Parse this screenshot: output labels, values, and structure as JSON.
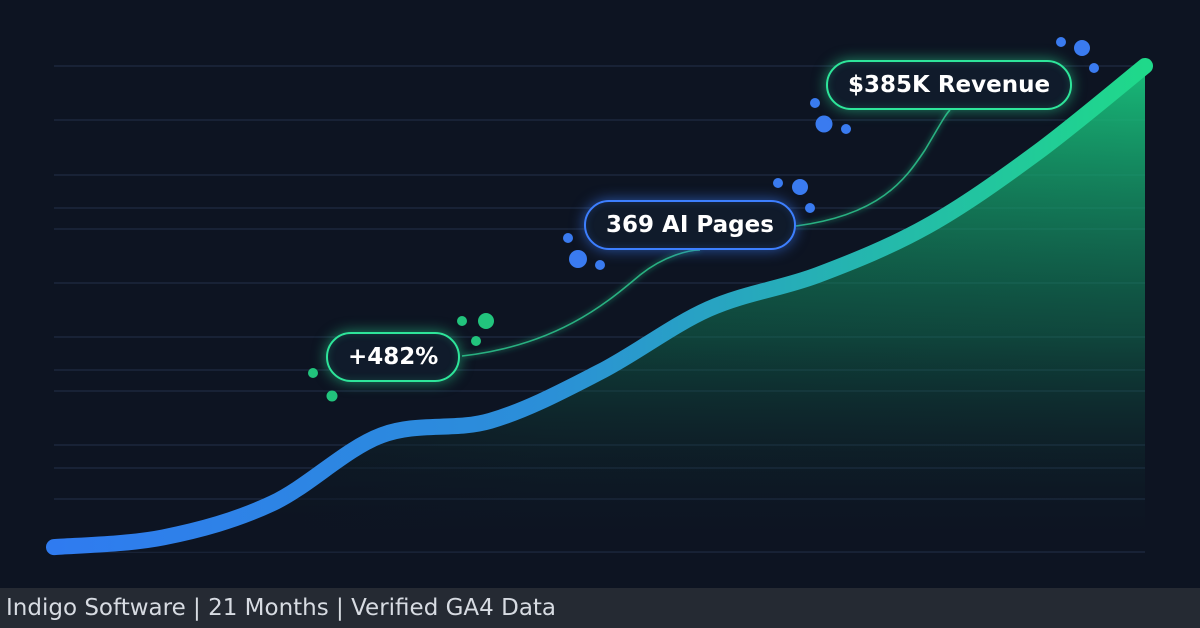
{
  "chart_data": {
    "type": "area",
    "title": "",
    "xlabel": "",
    "ylabel": "",
    "grid": true,
    "x": [
      0,
      0.1,
      0.2,
      0.3,
      0.4,
      0.5,
      0.6,
      0.7,
      0.8,
      0.9,
      1.0
    ],
    "y": [
      0.01,
      0.03,
      0.1,
      0.24,
      0.27,
      0.37,
      0.5,
      0.57,
      0.67,
      0.82,
      1.0
    ],
    "xlim": [
      0,
      1
    ],
    "ylim": [
      0,
      1
    ],
    "annotations": [
      {
        "label": "+482%",
        "color": "#2ee59a"
      },
      {
        "label": "369 AI Pages",
        "color": "#3d7fff"
      },
      {
        "label": "$385K Revenue",
        "color": "#2ee59a"
      }
    ]
  },
  "footer": {
    "text": "Indigo Software | 21 Months | Verified GA4 Data"
  },
  "colors": {
    "background": "#0d1422",
    "line_start": "#2f7bf0",
    "line_end": "#1fd98a",
    "area": "#16b877",
    "grid": "#223049"
  }
}
